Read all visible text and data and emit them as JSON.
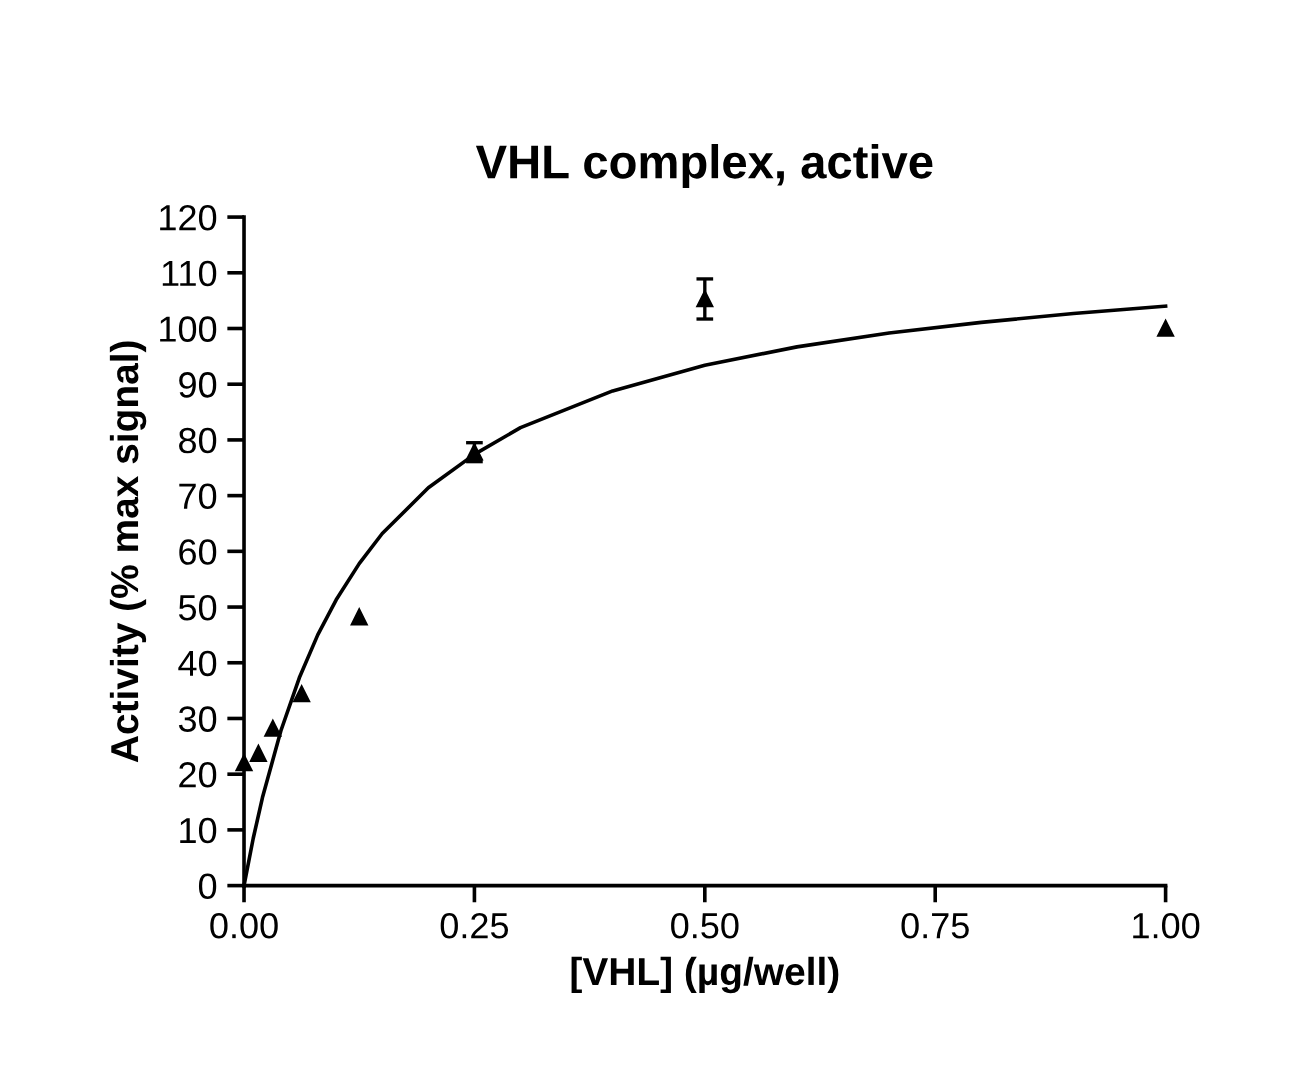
{
  "chart_data": {
    "type": "scatter",
    "title": "VHL complex, active",
    "xlabel": "[VHL] (µg/well)",
    "ylabel": "Activity (% max signal)",
    "xlim": [
      0,
      1
    ],
    "xticks": [
      {
        "value": 0,
        "label": "0.00"
      },
      {
        "value": 0.25,
        "label": "0.25"
      },
      {
        "value": 0.5,
        "label": "0.50"
      },
      {
        "value": 0.75,
        "label": "0.75"
      },
      {
        "value": 1,
        "label": "1.00"
      }
    ],
    "ylim": [
      0,
      120
    ],
    "yticks": [
      0,
      10,
      20,
      30,
      40,
      50,
      60,
      70,
      80,
      90,
      100,
      110,
      120
    ],
    "grid": false,
    "legend": false,
    "series": [
      {
        "marker": "triangle",
        "color": "#000000",
        "x": [
          0,
          0.0156,
          0.03125,
          0.0625,
          0.125,
          0.25,
          0.5,
          1.0
        ],
        "values": [
          22,
          23.7,
          28.2,
          34.4,
          48.2,
          77.8,
          105.3,
          100
        ],
        "errors": [
          null,
          null,
          null,
          null,
          null,
          1.7,
          3.6,
          null
        ]
      },
      {
        "type": "line",
        "marker": "none",
        "line_style": "solid",
        "color": "#000000",
        "x": [
          0,
          0.01,
          0.02,
          0.04,
          0.06,
          0.08,
          0.1,
          0.125,
          0.15,
          0.2,
          0.25,
          0.3,
          0.4,
          0.5,
          0.6,
          0.7,
          0.8,
          0.9,
          1.0
        ],
        "values": [
          0,
          8.5,
          15.8,
          27.8,
          37.3,
          45.0,
          51.3,
          57.8,
          63.2,
          71.4,
          77.4,
          82.2,
          88.8,
          93.4,
          96.7,
          99.2,
          101.1,
          102.7,
          104.0
        ]
      }
    ]
  }
}
